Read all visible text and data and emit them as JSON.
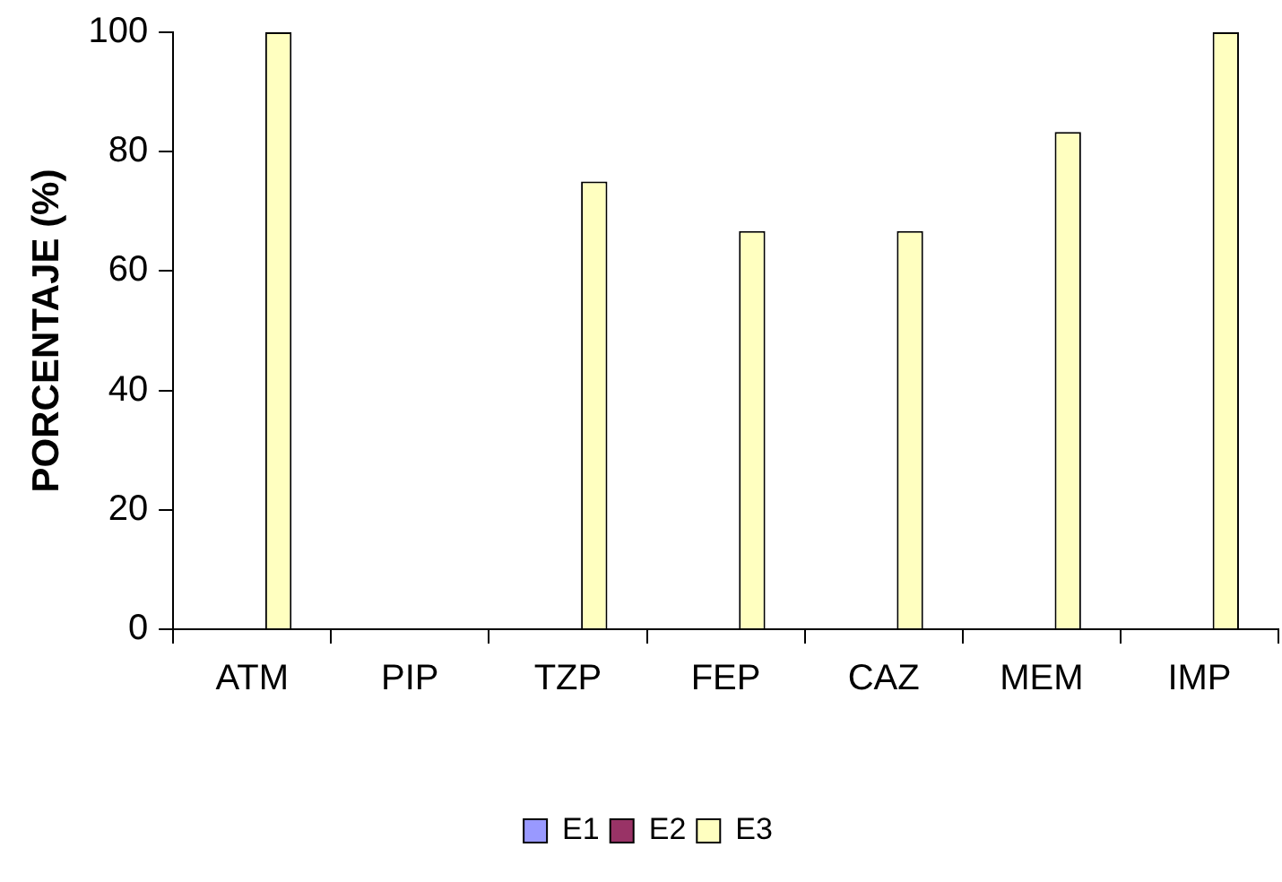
{
  "chart_data": {
    "type": "bar",
    "ylabel": "PORCENTAJE (%)",
    "categories": [
      "ATM",
      "PIP",
      "TZP",
      "FEP",
      "CAZ",
      "MEM",
      "IMP"
    ],
    "series": [
      {
        "name": "E1",
        "color": "#9999ff",
        "values": [
          0,
          0,
          0,
          0,
          0,
          0,
          0
        ]
      },
      {
        "name": "E2",
        "color": "#993366",
        "values": [
          0,
          0,
          0,
          0,
          0,
          0,
          0
        ]
      },
      {
        "name": "E3",
        "color": "#ffffc0",
        "values": [
          100,
          0,
          75,
          66.7,
          66.7,
          83.3,
          100
        ]
      }
    ],
    "ylim": [
      0,
      100
    ],
    "yticks": [
      0,
      20,
      40,
      60,
      80,
      100
    ],
    "grid": false,
    "legend": "bottom"
  }
}
